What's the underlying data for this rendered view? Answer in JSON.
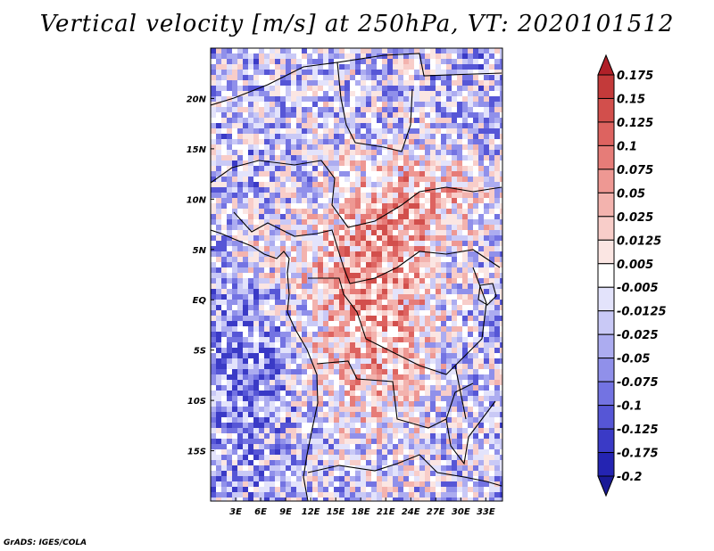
{
  "title": "Vertical velocity [m/s] at 250hPa, VT: 2020101512",
  "credit": "GrADS: IGES/COLA",
  "chart_data": {
    "type": "heatmap",
    "title": "Vertical velocity [m/s] at 250hPa, VT: 2020101512",
    "variable": "Vertical velocity",
    "units": "m/s",
    "level": "250hPa",
    "valid_time": "2020101512",
    "x_ticks": [
      "3E",
      "6E",
      "9E",
      "12E",
      "15E",
      "18E",
      "21E",
      "24E",
      "27E",
      "30E",
      "33E"
    ],
    "x_tick_values": [
      3,
      6,
      9,
      12,
      15,
      18,
      21,
      24,
      27,
      30,
      33
    ],
    "y_ticks": [
      "20N",
      "15N",
      "10N",
      "5N",
      "EQ",
      "5S",
      "10S",
      "15S"
    ],
    "y_tick_values": [
      20,
      15,
      10,
      5,
      0,
      -5,
      -10,
      -15
    ],
    "xlim": [
      0,
      35
    ],
    "ylim": [
      -20,
      25
    ],
    "colorbar": {
      "levels": [
        "0.175",
        "0.15",
        "0.125",
        "0.1",
        "0.075",
        "0.05",
        "0.025",
        "0.0125",
        "0.005",
        "-0.005",
        "-0.0125",
        "-0.025",
        "-0.05",
        "-0.075",
        "-0.1",
        "-0.125",
        "-0.175",
        "-0.2"
      ],
      "colors": [
        "#b02028",
        "#c33a3a",
        "#d24f4c",
        "#dd6360",
        "#e67c78",
        "#ee9893",
        "#f3b3ae",
        "#f8cdc9",
        "#fbe6e3",
        "#ffffff",
        "#e3e3fb",
        "#c9c9f6",
        "#acacf0",
        "#9090ea",
        "#7373e2",
        "#5656d6",
        "#3a3ac6",
        "#2424b2",
        "#1a1a96"
      ]
    }
  }
}
